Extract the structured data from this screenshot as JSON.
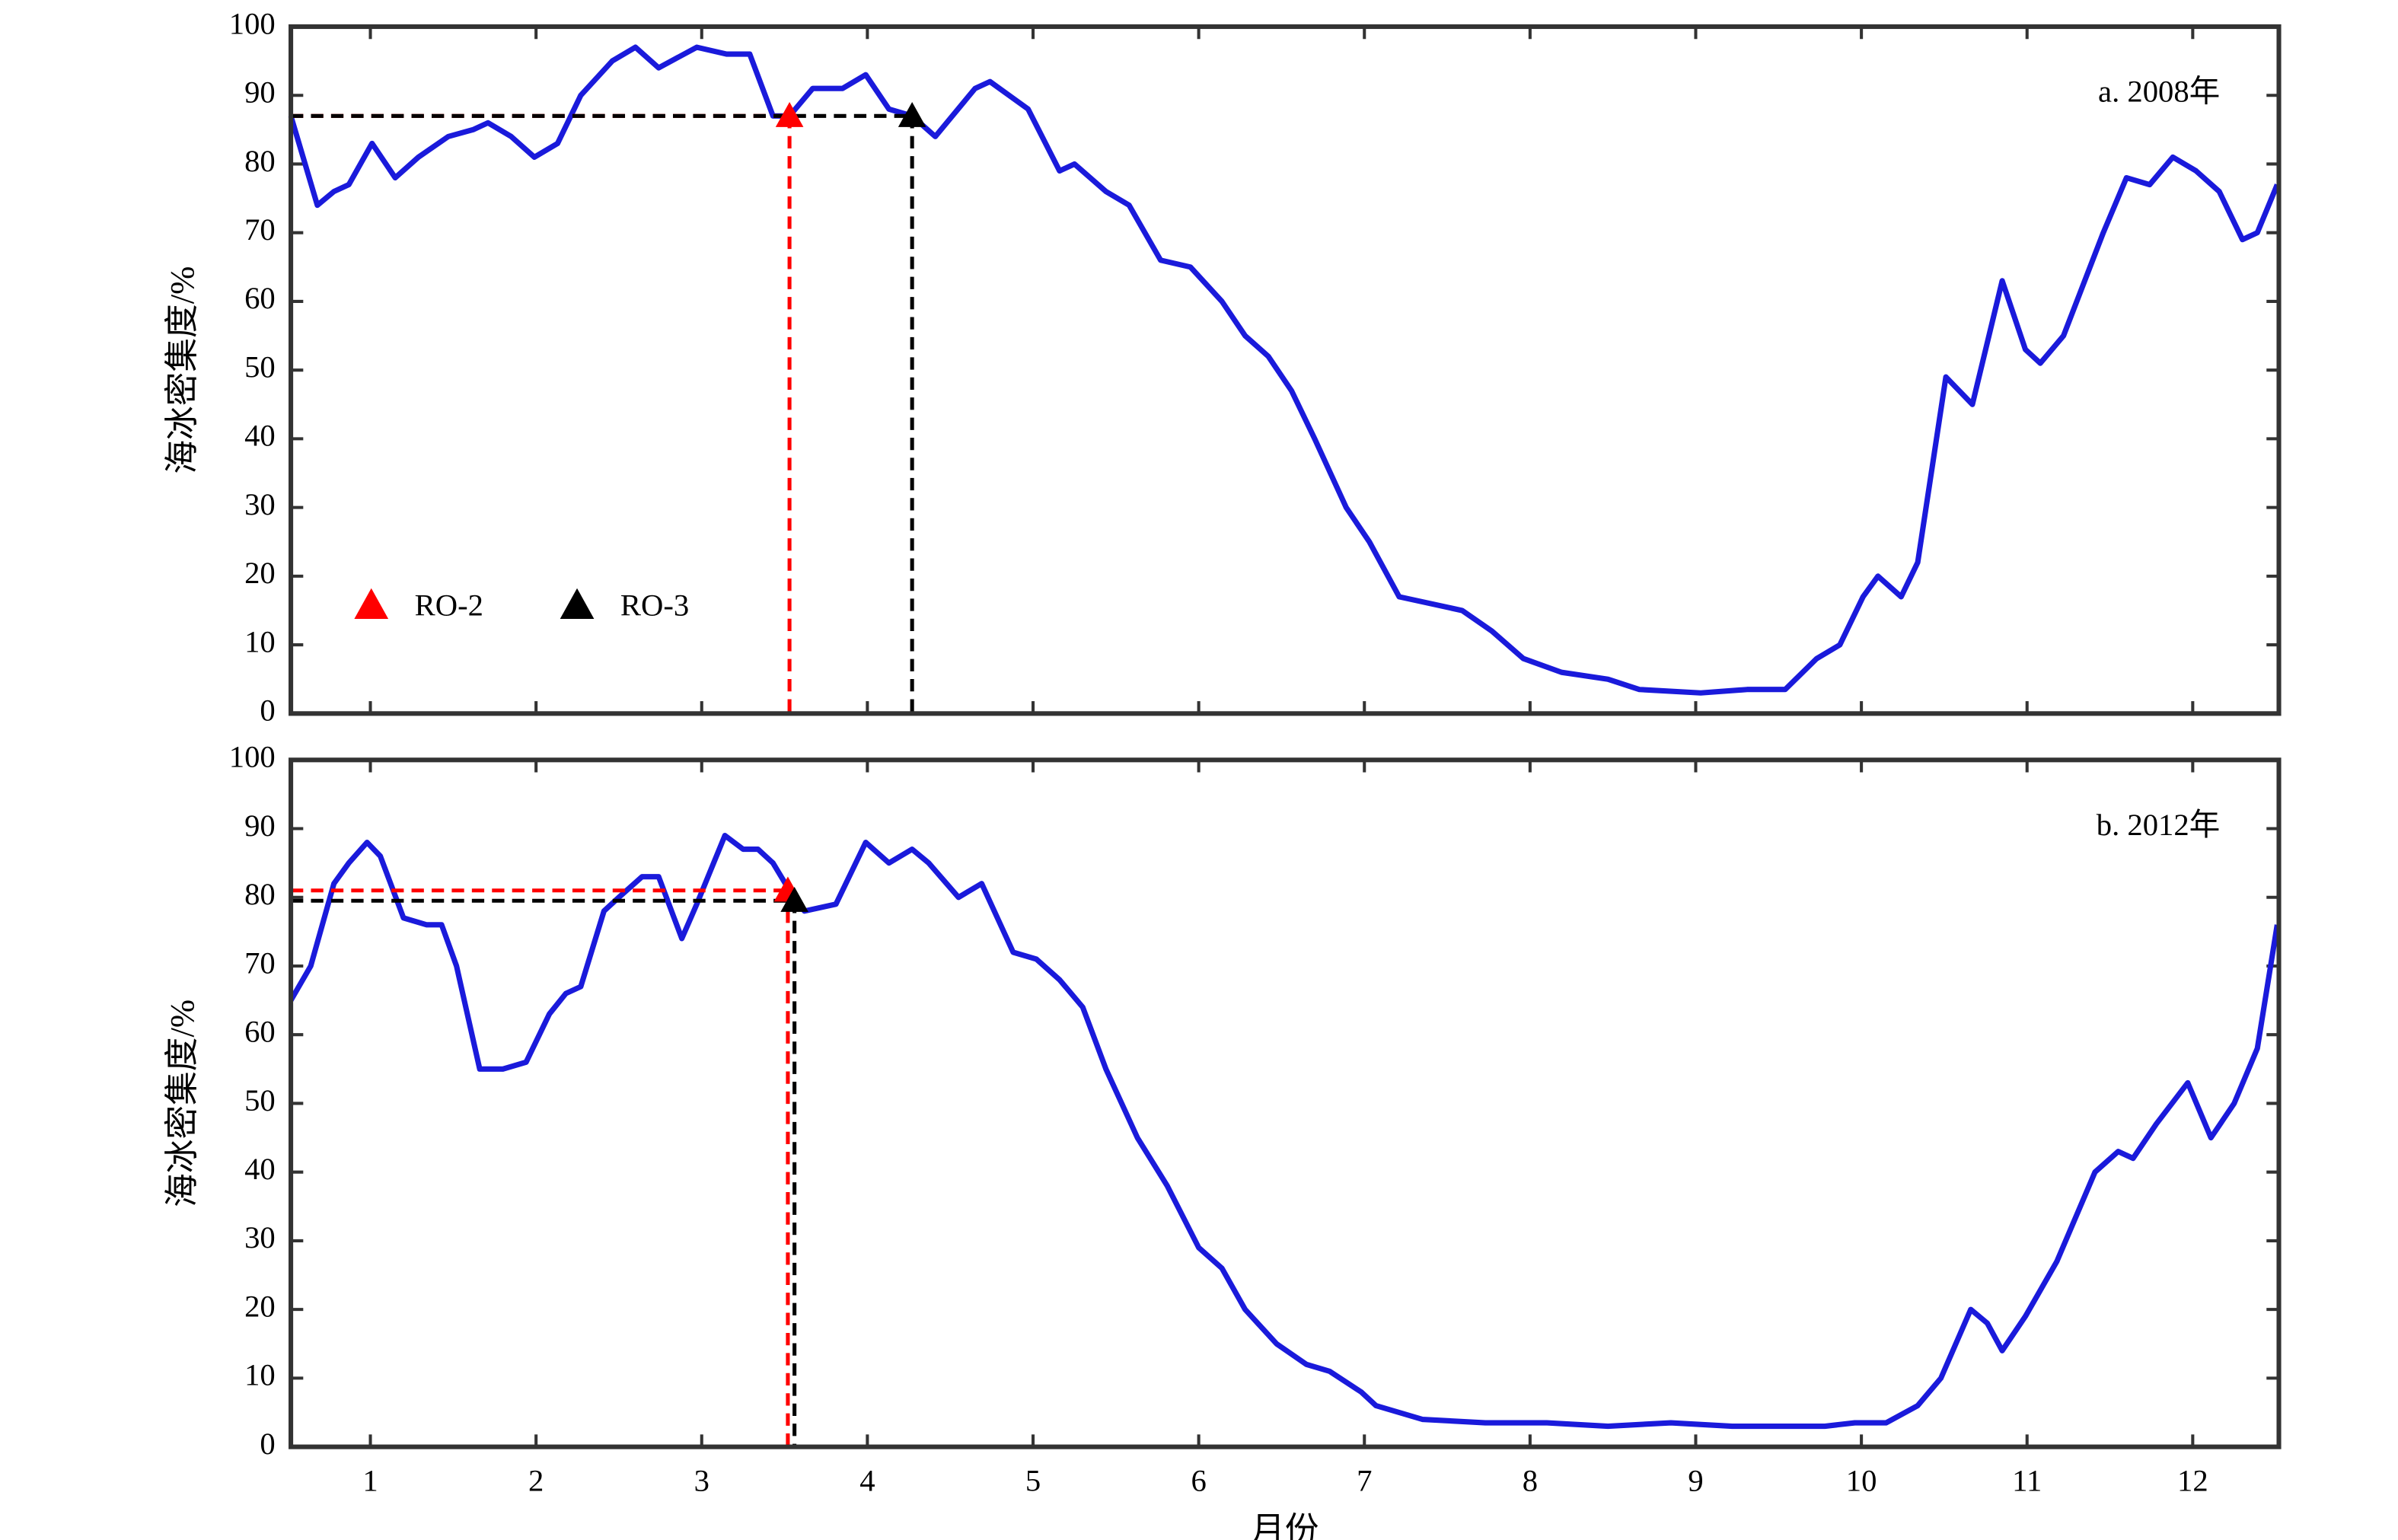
{
  "chart_data": [
    {
      "type": "line",
      "annotation": "a. 2008年",
      "ylabel": "海冰密集度/%",
      "color": "#1a1adb",
      "xlim": [
        0.52,
        12.52
      ],
      "xticks": [
        1,
        2,
        3,
        4,
        5,
        6,
        7,
        8,
        9,
        10,
        11,
        12
      ],
      "ylim": [
        0,
        100
      ],
      "yticks": [
        0,
        10,
        20,
        30,
        40,
        50,
        60,
        70,
        80,
        90,
        100
      ],
      "x": [
        0.52,
        0.68,
        0.78,
        0.87,
        1.01,
        1.15,
        1.29,
        1.47,
        1.62,
        1.71,
        1.85,
        1.99,
        2.13,
        2.27,
        2.46,
        2.6,
        2.74,
        2.97,
        3.15,
        3.29,
        3.43,
        3.53,
        3.67,
        3.85,
        3.99,
        4.13,
        4.27,
        4.41,
        4.65,
        4.74,
        4.97,
        5.16,
        5.25,
        5.44,
        5.58,
        5.77,
        5.95,
        6.14,
        6.28,
        6.42,
        6.56,
        6.7,
        6.89,
        7.03,
        7.21,
        7.4,
        7.59,
        7.77,
        7.96,
        8.19,
        8.47,
        8.66,
        9.03,
        9.31,
        9.54,
        9.73,
        9.87,
        10.01,
        10.1,
        10.24,
        10.34,
        10.51,
        10.67,
        10.85,
        10.99,
        11.08,
        11.22,
        11.46,
        11.6,
        11.74,
        11.88,
        12.02,
        12.16,
        12.3,
        12.39,
        12.51
      ],
      "values": [
        87,
        74,
        76,
        77,
        83,
        78,
        81,
        84,
        85,
        86,
        84,
        81,
        83,
        90,
        95,
        97,
        94,
        97,
        96,
        96,
        87,
        87,
        91,
        91,
        93,
        88,
        87,
        84,
        91,
        92,
        88,
        79,
        80,
        76,
        74,
        66,
        65,
        60,
        55,
        52,
        47,
        40,
        30,
        25,
        17,
        16,
        15,
        12,
        8,
        6,
        5,
        3.5,
        3,
        3.5,
        3.5,
        8,
        10,
        17,
        20,
        17,
        22,
        49,
        45,
        63,
        53,
        51,
        55,
        70,
        78,
        77,
        81,
        79,
        76,
        69,
        70,
        77
      ],
      "legend": "lower left",
      "markers": [
        {
          "name": "RO-2",
          "color": "#ff0000",
          "x": 3.53,
          "value": 87
        },
        {
          "name": "RO-3",
          "color": "#000000",
          "x": 4.27,
          "value": 87
        }
      ]
    },
    {
      "type": "line",
      "annotation": "b. 2012年",
      "ylabel": "海冰密集度/%",
      "xlabel": "月份",
      "color": "#1a1adb",
      "xlim": [
        0.52,
        12.52
      ],
      "xticks": [
        1,
        2,
        3,
        4,
        5,
        6,
        7,
        8,
        9,
        10,
        11,
        12
      ],
      "ylim": [
        0,
        100
      ],
      "yticks": [
        0,
        10,
        20,
        30,
        40,
        50,
        60,
        70,
        80,
        90,
        100
      ],
      "x": [
        0.52,
        0.64,
        0.78,
        0.87,
        0.98,
        1.06,
        1.2,
        1.34,
        1.43,
        1.52,
        1.66,
        1.8,
        1.94,
        2.08,
        2.18,
        2.27,
        2.41,
        2.5,
        2.64,
        2.74,
        2.88,
        2.97,
        3.14,
        3.25,
        3.34,
        3.43,
        3.53,
        3.62,
        3.81,
        3.99,
        4.13,
        4.27,
        4.37,
        4.55,
        4.69,
        4.88,
        5.02,
        5.16,
        5.3,
        5.44,
        5.63,
        5.81,
        6.0,
        6.14,
        6.28,
        6.47,
        6.65,
        6.79,
        6.98,
        7.07,
        7.35,
        7.73,
        8.1,
        8.47,
        8.85,
        9.22,
        9.78,
        9.96,
        10.15,
        10.34,
        10.48,
        10.57,
        10.66,
        10.76,
        10.85,
        10.99,
        11.18,
        11.41,
        11.55,
        11.64,
        11.78,
        11.97,
        12.11,
        12.25,
        12.39,
        12.51
      ],
      "values": [
        65,
        70,
        82,
        85,
        88,
        86,
        77,
        76,
        76,
        70,
        55,
        55,
        56,
        63,
        66,
        67,
        78,
        80,
        83,
        83,
        74,
        79,
        89,
        87,
        87,
        85,
        81,
        78,
        79,
        88,
        85,
        87,
        85,
        80,
        82,
        72,
        71,
        68,
        64,
        55,
        45,
        38,
        29,
        26,
        20,
        15,
        12,
        11,
        8,
        6,
        4,
        3.5,
        3.5,
        3,
        3.5,
        3,
        3,
        3.5,
        3.5,
        6,
        10,
        15,
        20,
        18,
        14,
        19,
        27,
        40,
        43,
        42,
        47,
        53,
        45,
        50,
        58,
        76
      ],
      "markers": [
        {
          "color": "#ff0000",
          "x": 3.52,
          "value": 81
        },
        {
          "color": "#000000",
          "x": 3.56,
          "value": 79.5
        }
      ]
    }
  ]
}
